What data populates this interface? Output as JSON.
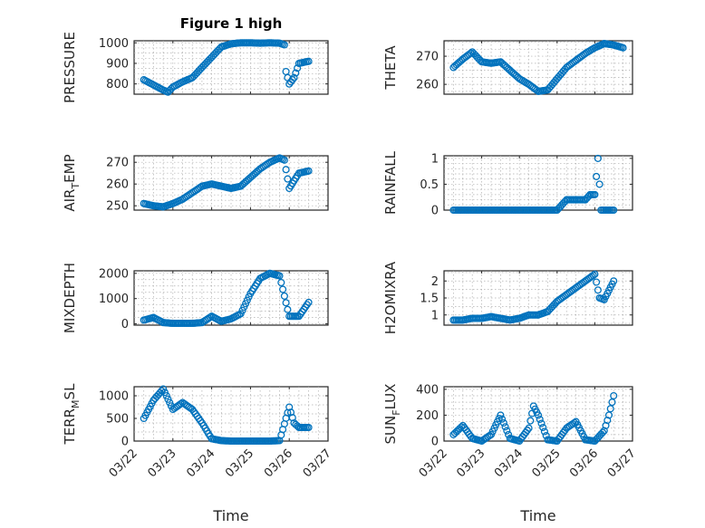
{
  "marker_color": "#0072BD",
  "chart_data": [
    {
      "type": "scatter",
      "id": "pressure",
      "title": "Figure 1 high",
      "ylabel": "PRESSURE",
      "xlabel": "",
      "x_tick_labels": [],
      "ylim": [
        750,
        1010
      ],
      "yticks": [
        800,
        900,
        1000
      ],
      "minor_y": [
        750,
        775,
        800,
        825,
        850,
        875,
        900,
        925,
        950,
        975,
        1000
      ],
      "grid": true,
      "anchors": [
        [
          "03/22 06:00",
          820
        ],
        [
          "03/22 12:00",
          795
        ],
        [
          "03/22 18:00",
          770
        ],
        [
          "03/22 21:00",
          760
        ],
        [
          "03/23 00:00",
          785
        ],
        [
          "03/23 06:00",
          810
        ],
        [
          "03/23 12:00",
          830
        ],
        [
          "03/23 18:00",
          880
        ],
        [
          "03/24 00:00",
          930
        ],
        [
          "03/24 06:00",
          980
        ],
        [
          "03/24 12:00",
          995
        ],
        [
          "03/24 18:00",
          1000
        ],
        [
          "03/25 00:00",
          1000
        ],
        [
          "03/25 06:00",
          998
        ],
        [
          "03/25 12:00",
          1000
        ],
        [
          "03/25 18:00",
          998
        ],
        [
          "03/25 21:00",
          990
        ],
        [
          "03/25 22:00",
          860
        ],
        [
          "03/26 00:00",
          800
        ],
        [
          "03/26 03:00",
          830
        ],
        [
          "03/26 06:00",
          900
        ],
        [
          "03/26 12:00",
          910
        ]
      ]
    },
    {
      "type": "scatter",
      "id": "theta",
      "title": "",
      "ylabel": "THETA",
      "xlabel": "",
      "x_tick_labels": [],
      "ylim": [
        256.5,
        275.5
      ],
      "yticks": [
        260,
        270
      ],
      "minor_y": [
        257.5,
        260,
        262.5,
        265,
        267.5,
        270,
        272.5,
        275
      ],
      "grid": true,
      "anchors": [
        [
          "03/22 06:00",
          266
        ],
        [
          "03/22 12:00",
          269
        ],
        [
          "03/22 18:00",
          271.5
        ],
        [
          "03/23 00:00",
          268
        ],
        [
          "03/23 06:00",
          267.5
        ],
        [
          "03/23 12:00",
          268
        ],
        [
          "03/23 18:00",
          265
        ],
        [
          "03/24 00:00",
          262
        ],
        [
          "03/24 06:00",
          260
        ],
        [
          "03/24 12:00",
          257.5
        ],
        [
          "03/24 18:00",
          258
        ],
        [
          "03/25 00:00",
          262
        ],
        [
          "03/25 06:00",
          266
        ],
        [
          "03/25 12:00",
          268.5
        ],
        [
          "03/25 18:00",
          271
        ],
        [
          "03/26 00:00",
          273
        ],
        [
          "03/26 06:00",
          274.5
        ],
        [
          "03/26 12:00",
          274
        ],
        [
          "03/26 18:00",
          273
        ]
      ]
    },
    {
      "type": "scatter",
      "id": "airtemp",
      "title": "",
      "ylabel": "AIR",
      "ylabel_sub": "T",
      "ylabel_rest": "EMP",
      "xlabel": "",
      "x_tick_labels": [],
      "ylim": [
        248,
        273
      ],
      "yticks": [
        250,
        260,
        270
      ],
      "minor_y": [
        250,
        252.5,
        255,
        257.5,
        260,
        262.5,
        265,
        267.5,
        270,
        272.5
      ],
      "grid": true,
      "anchors": [
        [
          "03/22 06:00",
          251
        ],
        [
          "03/22 12:00",
          250
        ],
        [
          "03/22 18:00",
          249.5
        ],
        [
          "03/23 00:00",
          251
        ],
        [
          "03/23 06:00",
          253
        ],
        [
          "03/23 12:00",
          256
        ],
        [
          "03/23 18:00",
          259
        ],
        [
          "03/24 00:00",
          260
        ],
        [
          "03/24 06:00",
          259
        ],
        [
          "03/24 12:00",
          258
        ],
        [
          "03/24 18:00",
          259
        ],
        [
          "03/25 00:00",
          263
        ],
        [
          "03/25 06:00",
          267
        ],
        [
          "03/25 12:00",
          270
        ],
        [
          "03/25 18:00",
          272
        ],
        [
          "03/25 21:00",
          271
        ],
        [
          "03/26 00:00",
          258
        ],
        [
          "03/26 06:00",
          265
        ],
        [
          "03/26 12:00",
          266
        ]
      ]
    },
    {
      "type": "scatter",
      "id": "rainfall",
      "title": "",
      "ylabel": "RAINFALL",
      "xlabel": "",
      "x_tick_labels": [],
      "ylim": [
        0,
        1.05
      ],
      "yticks": [
        0,
        0.5,
        1
      ],
      "yticklabels": [
        "0",
        "0.5",
        "1"
      ],
      "minor_y": [
        0,
        0.1,
        0.2,
        0.3,
        0.4,
        0.5,
        0.6,
        0.7,
        0.8,
        0.9,
        1.0
      ],
      "grid": true,
      "anchors": [
        [
          "03/22 06:00",
          0
        ],
        [
          "03/25 00:00",
          0
        ],
        [
          "03/25 06:00",
          0.2
        ],
        [
          "03/25 18:00",
          0.2
        ],
        [
          "03/25 21:00",
          0.3
        ],
        [
          "03/26 00:00",
          0.3
        ],
        [
          "03/26 02:00",
          1
        ],
        [
          "03/26 04:00",
          0
        ],
        [
          "03/26 12:00",
          0
        ]
      ]
    },
    {
      "type": "scatter",
      "id": "mixdepth",
      "title": "",
      "ylabel": "MIXDEPTH",
      "xlabel": "",
      "x_tick_labels": [],
      "ylim": [
        -50,
        2100
      ],
      "yticks": [
        0,
        1000,
        2000
      ],
      "minor_y": [
        0,
        250,
        500,
        750,
        1000,
        1250,
        1500,
        1750,
        2000
      ],
      "grid": true,
      "anchors": [
        [
          "03/22 06:00",
          150
        ],
        [
          "03/22 12:00",
          250
        ],
        [
          "03/22 18:00",
          50
        ],
        [
          "03/23 00:00",
          20
        ],
        [
          "03/23 12:00",
          20
        ],
        [
          "03/23 18:00",
          50
        ],
        [
          "03/24 00:00",
          300
        ],
        [
          "03/24 06:00",
          100
        ],
        [
          "03/24 12:00",
          200
        ],
        [
          "03/24 18:00",
          400
        ],
        [
          "03/25 00:00",
          1200
        ],
        [
          "03/25 06:00",
          1800
        ],
        [
          "03/25 12:00",
          2000
        ],
        [
          "03/25 18:00",
          1900
        ],
        [
          "03/26 00:00",
          300
        ],
        [
          "03/26 06:00",
          300
        ],
        [
          "03/26 12:00",
          850
        ]
      ]
    },
    {
      "type": "scatter",
      "id": "h2omixra",
      "title": "",
      "ylabel": "H2OMIXRA",
      "xlabel": "",
      "x_tick_labels": [],
      "ylim": [
        0.7,
        2.3
      ],
      "yticks": [
        1,
        1.5,
        2
      ],
      "yticklabels": [
        "1",
        "1.5",
        "2"
      ],
      "minor_y": [
        0.75,
        1,
        1.25,
        1.5,
        1.75,
        2,
        2.25
      ],
      "grid": true,
      "anchors": [
        [
          "03/22 06:00",
          0.85
        ],
        [
          "03/22 12:00",
          0.85
        ],
        [
          "03/22 18:00",
          0.9
        ],
        [
          "03/23 00:00",
          0.9
        ],
        [
          "03/23 06:00",
          0.95
        ],
        [
          "03/23 12:00",
          0.9
        ],
        [
          "03/23 18:00",
          0.85
        ],
        [
          "03/24 00:00",
          0.9
        ],
        [
          "03/24 06:00",
          1.0
        ],
        [
          "03/24 12:00",
          1.0
        ],
        [
          "03/24 18:00",
          1.1
        ],
        [
          "03/25 00:00",
          1.4
        ],
        [
          "03/25 06:00",
          1.6
        ],
        [
          "03/25 12:00",
          1.8
        ],
        [
          "03/25 18:00",
          2.0
        ],
        [
          "03/26 00:00",
          2.2
        ],
        [
          "03/26 03:00",
          1.5
        ],
        [
          "03/26 06:00",
          1.45
        ],
        [
          "03/26 12:00",
          2.0
        ]
      ]
    },
    {
      "type": "scatter",
      "id": "terrmsl",
      "title": "",
      "ylabel": "TERR",
      "ylabel_sub": "M",
      "ylabel_rest": "SL",
      "xlabel": "Time",
      "x_tick_labels": [
        "03/22",
        "03/23",
        "03/24",
        "03/25",
        "03/26",
        "03/27"
      ],
      "ylim": [
        0,
        1200
      ],
      "yticks": [
        0,
        500,
        1000
      ],
      "minor_y": [
        0,
        200,
        400,
        600,
        800,
        1000,
        1200
      ],
      "grid": true,
      "anchors": [
        [
          "03/22 06:00",
          500
        ],
        [
          "03/22 12:00",
          900
        ],
        [
          "03/22 18:00",
          1150
        ],
        [
          "03/23 00:00",
          700
        ],
        [
          "03/23 06:00",
          850
        ],
        [
          "03/23 12:00",
          700
        ],
        [
          "03/23 18:00",
          400
        ],
        [
          "03/24 00:00",
          50
        ],
        [
          "03/24 06:00",
          10
        ],
        [
          "03/24 12:00",
          0
        ],
        [
          "03/25 12:00",
          0
        ],
        [
          "03/25 18:00",
          10
        ],
        [
          "03/26 00:00",
          750
        ],
        [
          "03/26 03:00",
          400
        ],
        [
          "03/26 06:00",
          300
        ],
        [
          "03/26 12:00",
          300
        ]
      ]
    },
    {
      "type": "scatter",
      "id": "sunflux",
      "title": "",
      "ylabel": "SUN",
      "ylabel_sub": "F",
      "ylabel_rest": "LUX",
      "xlabel": "Time",
      "x_tick_labels": [
        "03/22",
        "03/23",
        "03/24",
        "03/25",
        "03/26",
        "03/27"
      ],
      "ylim": [
        0,
        420
      ],
      "yticks": [
        0,
        200,
        400
      ],
      "minor_y": [
        0,
        50,
        100,
        150,
        200,
        250,
        300,
        350,
        400
      ],
      "grid": true,
      "anchors": [
        [
          "03/22 06:00",
          50
        ],
        [
          "03/22 12:00",
          120
        ],
        [
          "03/22 18:00",
          20
        ],
        [
          "03/23 00:00",
          0
        ],
        [
          "03/23 06:00",
          50
        ],
        [
          "03/23 12:00",
          200
        ],
        [
          "03/23 18:00",
          20
        ],
        [
          "03/24 00:00",
          0
        ],
        [
          "03/24 06:00",
          100
        ],
        [
          "03/24 09:00",
          270
        ],
        [
          "03/24 12:00",
          200
        ],
        [
          "03/24 18:00",
          10
        ],
        [
          "03/25 00:00",
          0
        ],
        [
          "03/25 06:00",
          100
        ],
        [
          "03/25 12:00",
          150
        ],
        [
          "03/25 18:00",
          10
        ],
        [
          "03/26 00:00",
          0
        ],
        [
          "03/26 06:00",
          80
        ],
        [
          "03/26 09:00",
          200
        ],
        [
          "03/26 12:00",
          350
        ]
      ]
    }
  ]
}
